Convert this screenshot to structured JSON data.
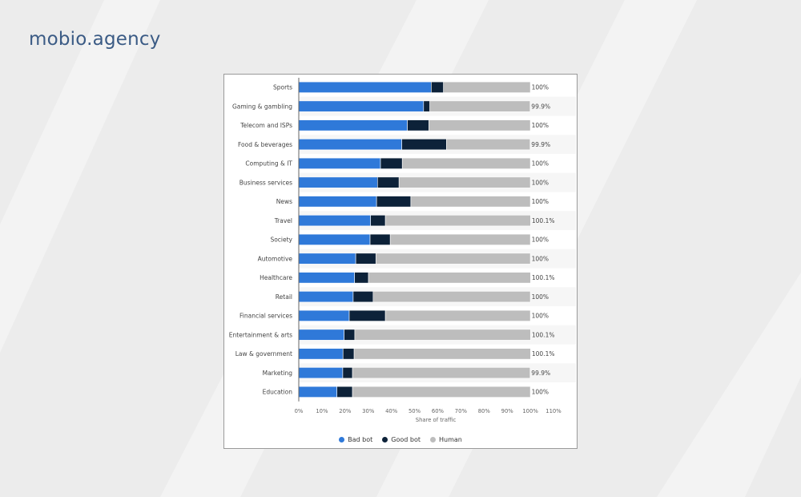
{
  "brand": {
    "name": "mobio.agency"
  },
  "colors": {
    "bad_bot": "#2f79d9",
    "good_bot": "#0d2239",
    "human": "#bdbdbd"
  },
  "chart_data": {
    "type": "bar",
    "orientation": "horizontal",
    "stacked": true,
    "title": "",
    "xlabel": "Share of traffic",
    "ylabel": "",
    "xlim": [
      0,
      110
    ],
    "x_ticks": [
      "0%",
      "10%",
      "20%",
      "30%",
      "40%",
      "50%",
      "60%",
      "70%",
      "80%",
      "90%",
      "100%",
      "110%"
    ],
    "grid": false,
    "legend_position": "bottom",
    "categories": [
      "Sports",
      "Gaming & gambling",
      "Telecom and ISPs",
      "Food & beverages",
      "Computing & IT",
      "Business services",
      "News",
      "Travel",
      "Society",
      "Automotive",
      "Healthcare",
      "Retail",
      "Financial services",
      "Entertainment & arts",
      "Law & government",
      "Marketing",
      "Education"
    ],
    "series": [
      {
        "name": "Bad bot",
        "color": "#2f79d9",
        "values": [
          57.2,
          53.9,
          46.9,
          44.5,
          35.3,
          34.0,
          33.6,
          31.0,
          30.8,
          24.6,
          24.1,
          23.5,
          21.8,
          19.6,
          19.1,
          19.0,
          16.5
        ]
      },
      {
        "name": "Good bot",
        "color": "#0d2239",
        "values": [
          5.3,
          2.7,
          9.3,
          19.3,
          9.4,
          9.3,
          14.8,
          6.4,
          8.7,
          8.7,
          6.0,
          8.6,
          15.6,
          4.6,
          4.8,
          4.2,
          6.7
        ]
      },
      {
        "name": "Human",
        "color": "#bdbdbd",
        "values": [
          37.5,
          43.3,
          43.8,
          36.1,
          55.3,
          56.7,
          51.6,
          62.7,
          60.5,
          66.7,
          70.0,
          67.9,
          62.6,
          75.9,
          76.2,
          76.7,
          76.8
        ]
      }
    ],
    "data_labels": [
      "100%",
      "99.9%",
      "100%",
      "99.9%",
      "100%",
      "100%",
      "100%",
      "100.1%",
      "100%",
      "100%",
      "100.1%",
      "100%",
      "100%",
      "100.1%",
      "100.1%",
      "99.9%",
      "100%"
    ]
  }
}
